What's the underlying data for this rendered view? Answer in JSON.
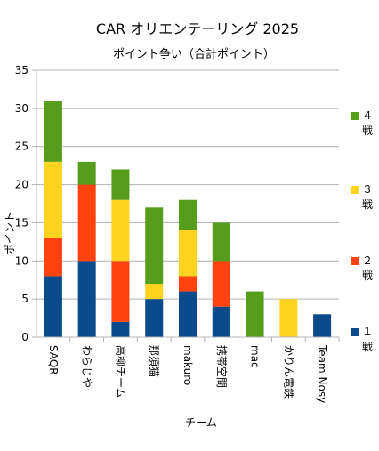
{
  "chart_data": {
    "type": "bar",
    "stacked": true,
    "title": "CAR オリエンテーリング 2025",
    "subtitle": "ポイント争い（合計ポイント）",
    "xlabel": "チーム",
    "ylabel": "ポイント",
    "ylim": [
      0,
      35
    ],
    "yticks": [
      0,
      5,
      10,
      15,
      20,
      25,
      30,
      35
    ],
    "grid": true,
    "legend_position": "right",
    "categories": [
      "SAQR",
      "わらじや",
      "高柳チーム",
      "那須猫",
      "makuro",
      "携帯空間",
      "mac",
      "かりん電鉄",
      "Team Nosy"
    ],
    "series": [
      {
        "name": "１戦",
        "color": "#0b4a8b",
        "values": [
          8,
          10,
          2,
          5,
          6,
          4,
          0,
          0,
          3
        ]
      },
      {
        "name": "２戦",
        "color": "#ff420e",
        "values": [
          5,
          10,
          8,
          0,
          2,
          6,
          0,
          0,
          0
        ]
      },
      {
        "name": "３戦",
        "color": "#ffd320",
        "values": [
          10,
          0,
          8,
          2,
          6,
          0,
          0,
          5,
          0
        ]
      },
      {
        "name": "４戦",
        "color": "#579d1c",
        "values": [
          8,
          3,
          4,
          10,
          4,
          5,
          6,
          0,
          0
        ]
      }
    ]
  }
}
